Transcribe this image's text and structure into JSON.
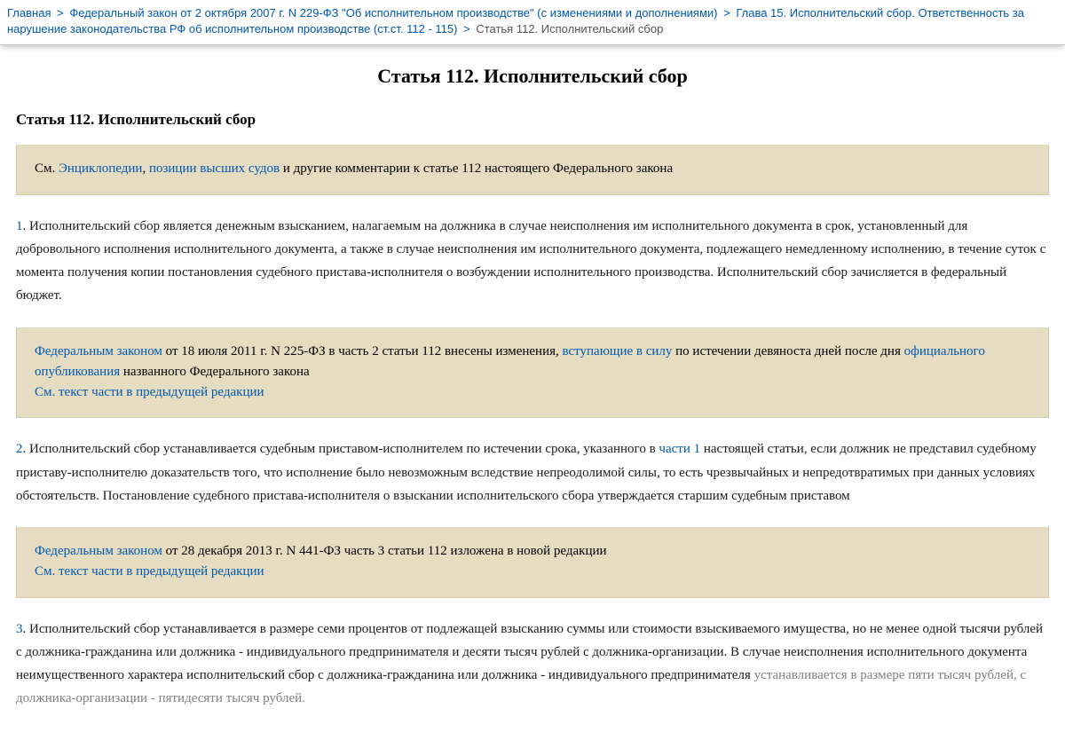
{
  "breadcrumb": {
    "home": "Главная",
    "law": "Федеральный закон от 2 октября 2007 г. N 229-ФЗ \"Об исполнительном производстве\" (с изменениями и дополнениями)",
    "chapter": "Глава 15. Исполнительский сбор. Ответственность за нарушение законодательства РФ об исполнительном производстве (ст.ст. 112 - 115)",
    "current": "Статья 112. Исполнительский сбор",
    "sep": ">"
  },
  "title": "Статья 112. Исполнительский сбор",
  "subtitle": "Статья 112. Исполнительский сбор",
  "note1": {
    "prefix": "См. ",
    "link1": "Энциклопедии",
    "comma": ", ",
    "link2": "позиции высших судов",
    "suffix": " и другие комментарии к статье 112 настоящего Федерального закона"
  },
  "para1": {
    "num": "1",
    "text": ". Исполнительский сбор является денежным взысканием, налагаемым на должника в случае неисполнения им исполнительного документа в срок, установленный для добровольного исполнения исполнительного документа, а также в случае неисполнения им исполнительного документа, подлежащего немедленному исполнению, в течение суток с момента получения копии постановления судебного пристава-исполнителя о возбуждении исполнительного производства. Исполнительский сбор зачисляется в федеральный бюджет."
  },
  "note2": {
    "link1": "Федеральным законом",
    "part1": " от 18 июля 2011 г. N 225-ФЗ в часть 2 статьи 112 внесены изменения, ",
    "link2": "вступающие в силу",
    "part2": " по истечении девяноста дней после дня ",
    "link3": "официального опубликования",
    "part3": " названного Федерального закона",
    "link4": "См. текст части в предыдущей редакции"
  },
  "para2": {
    "num": "2",
    "part1": ". Исполнительский сбор устанавливается судебным приставом-исполнителем по истечении срока, указанного в ",
    "link1": "части 1",
    "part2": " настоящей статьи, если должник не представил судебному приставу-исполнителю доказательств того, что исполнение было невозможным вследствие непреодолимой силы, то есть чрезвычайных и непредотвратимых при данных условиях обстоятельств. Постановление судебного пристава-исполнителя о взыскании исполнительского сбора утверждается старшим судебным приставом"
  },
  "note3": {
    "link1": "Федеральным законом",
    "part1": " от 28 декабря 2013 г. N 441-ФЗ часть 3 статьи 112 изложена в новой редакции",
    "link2": "См. текст части в предыдущей редакции"
  },
  "para3": {
    "num": "3",
    "part1": ". Исполнительский сбор устанавливается в размере семи процентов от подлежащей взысканию суммы или стоимости взыскиваемого имущества, но не менее одной тысячи рублей с должника-гражданина или должника - индивидуального предпринимателя и десяти тысяч рублей с должника-организации. В случае неисполнения исполнительного документа неимущественного характера исполнительский сбор с должника-гражданина или должника - индивидуального предпринимателя ",
    "faded": "устанавливается в размере пяти тысяч рублей, с должника-организации - пятидесяти тысяч рублей."
  },
  "colors": {
    "link": "#0058b0",
    "note_bg": "#e6dcc1",
    "text": "#1a1a1a",
    "faded": "#808080"
  }
}
